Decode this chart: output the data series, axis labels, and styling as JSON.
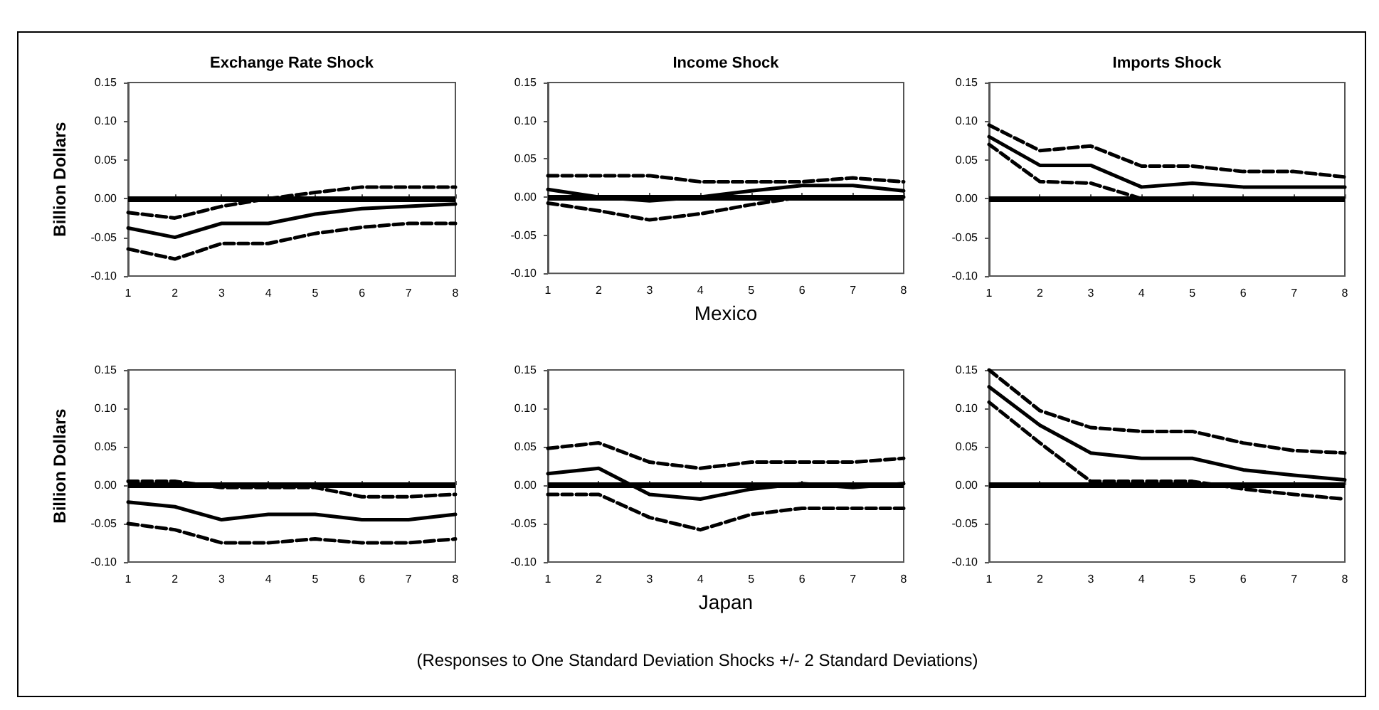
{
  "chart_data": [
    {
      "type": "line",
      "title": "Exchange Rate Shock",
      "ylabel": "Billion Dollars",
      "x": [
        1,
        2,
        3,
        4,
        5,
        6,
        7,
        8
      ],
      "xlim": [
        1,
        8
      ],
      "xticks": [
        1,
        2,
        3,
        4,
        5,
        6,
        7,
        8
      ],
      "ylim": [
        -0.1,
        0.15
      ],
      "yticks": [
        {
          "value": -0.1,
          "label": "-0.10"
        },
        {
          "value": -0.05,
          "label": "-0.05"
        },
        {
          "value": 0,
          "label": "0.00"
        },
        {
          "value": 0.05,
          "label": "0.05"
        },
        {
          "value": 0.1,
          "label": "0.10"
        },
        {
          "value": 0.15,
          "label": "0.15"
        }
      ],
      "marker": "none",
      "grid": false,
      "series": [
        {
          "color": "#000000",
          "line_style": "solid",
          "values": [
            -0.038,
            -0.05,
            -0.032,
            -0.032,
            -0.02,
            -0.013,
            -0.01,
            -0.007
          ]
        },
        {
          "color": "#000000",
          "line_style": "dashed",
          "values": [
            -0.018,
            -0.025,
            -0.01,
            0.0,
            0.008,
            0.015,
            0.015,
            0.015
          ]
        },
        {
          "color": "#000000",
          "line_style": "dashed",
          "values": [
            -0.065,
            -0.078,
            -0.058,
            -0.058,
            -0.045,
            -0.037,
            -0.032,
            -0.032
          ]
        }
      ],
      "ref_lines": [
        {
          "axis": "y",
          "value": 0,
          "color": "#000000"
        }
      ]
    },
    {
      "type": "line",
      "title": "Income Shock",
      "xlabel": "Mexico",
      "x": [
        1,
        2,
        3,
        4,
        5,
        6,
        7,
        8
      ],
      "xlim": [
        1,
        8
      ],
      "xticks": [
        1,
        2,
        3,
        4,
        5,
        6,
        7,
        8
      ],
      "ylim": [
        -0.1,
        0.15
      ],
      "yticks": [
        {
          "value": -0.1,
          "label": "-0.10"
        },
        {
          "value": -0.05,
          "label": "-0.05"
        },
        {
          "value": 0,
          "label": "0.00"
        },
        {
          "value": 0.05,
          "label": "0.05"
        },
        {
          "value": 0.1,
          "label": "0.10"
        },
        {
          "value": 0.15,
          "label": "0.15"
        }
      ],
      "marker": "none",
      "grid": false,
      "series": [
        {
          "color": "#000000",
          "line_style": "solid",
          "values": [
            0.01,
            0.0,
            -0.005,
            0.0,
            0.008,
            0.015,
            0.015,
            0.008
          ]
        },
        {
          "color": "#000000",
          "line_style": "dashed",
          "values": [
            0.028,
            0.028,
            0.028,
            0.02,
            0.02,
            0.02,
            0.025,
            0.02
          ]
        },
        {
          "color": "#000000",
          "line_style": "dashed",
          "values": [
            -0.008,
            -0.018,
            -0.03,
            -0.022,
            -0.01,
            0.0,
            0.0,
            0.0
          ]
        }
      ],
      "ref_lines": [
        {
          "axis": "y",
          "value": 0,
          "color": "#000000"
        }
      ]
    },
    {
      "type": "line",
      "title": "Imports Shock",
      "x": [
        1,
        2,
        3,
        4,
        5,
        6,
        7,
        8
      ],
      "xlim": [
        1,
        8
      ],
      "xticks": [
        1,
        2,
        3,
        4,
        5,
        6,
        7,
        8
      ],
      "ylim": [
        -0.1,
        0.15
      ],
      "yticks": [
        {
          "value": -0.1,
          "label": "-0.10"
        },
        {
          "value": -0.05,
          "label": "-0.05"
        },
        {
          "value": 0,
          "label": "0.00"
        },
        {
          "value": 0.05,
          "label": "0.05"
        },
        {
          "value": 0.1,
          "label": "0.10"
        },
        {
          "value": 0.15,
          "label": "0.15"
        }
      ],
      "marker": "none",
      "grid": false,
      "series": [
        {
          "color": "#000000",
          "line_style": "solid",
          "values": [
            0.08,
            0.043,
            0.043,
            0.015,
            0.02,
            0.015,
            0.015,
            0.015
          ]
        },
        {
          "color": "#000000",
          "line_style": "dashed",
          "values": [
            0.095,
            0.062,
            0.068,
            0.042,
            0.042,
            0.035,
            0.035,
            0.028
          ]
        },
        {
          "color": "#000000",
          "line_style": "dashed",
          "values": [
            0.07,
            0.022,
            0.02,
            0.0,
            null,
            null,
            null,
            null
          ]
        }
      ],
      "ref_lines": [
        {
          "axis": "y",
          "value": 0,
          "color": "#000000"
        }
      ]
    },
    {
      "type": "line",
      "ylabel": "Billion Dollars",
      "x": [
        1,
        2,
        3,
        4,
        5,
        6,
        7,
        8
      ],
      "xlim": [
        1,
        8
      ],
      "xticks": [
        1,
        2,
        3,
        4,
        5,
        6,
        7,
        8
      ],
      "ylim": [
        -0.1,
        0.15
      ],
      "yticks": [
        {
          "value": -0.1,
          "label": "-0.10"
        },
        {
          "value": -0.05,
          "label": "-0.05"
        },
        {
          "value": 0,
          "label": "0.00"
        },
        {
          "value": 0.05,
          "label": "0.05"
        },
        {
          "value": 0.1,
          "label": "0.10"
        },
        {
          "value": 0.15,
          "label": "0.15"
        }
      ],
      "marker": "none",
      "grid": false,
      "series": [
        {
          "color": "#000000",
          "line_style": "solid",
          "values": [
            -0.022,
            -0.028,
            -0.045,
            -0.038,
            -0.038,
            -0.045,
            -0.045,
            -0.038
          ]
        },
        {
          "color": "#000000",
          "line_style": "dashed",
          "values": [
            0.005,
            0.005,
            -0.003,
            -0.003,
            -0.003,
            -0.015,
            -0.015,
            -0.012
          ]
        },
        {
          "color": "#000000",
          "line_style": "dashed",
          "values": [
            -0.05,
            -0.058,
            -0.075,
            -0.075,
            -0.07,
            -0.075,
            -0.075,
            -0.07
          ]
        }
      ],
      "ref_lines": [
        {
          "axis": "y",
          "value": 0,
          "color": "#000000"
        }
      ]
    },
    {
      "type": "line",
      "xlabel": "Japan",
      "x": [
        1,
        2,
        3,
        4,
        5,
        6,
        7,
        8
      ],
      "xlim": [
        1,
        8
      ],
      "xticks": [
        1,
        2,
        3,
        4,
        5,
        6,
        7,
        8
      ],
      "ylim": [
        -0.1,
        0.15
      ],
      "yticks": [
        {
          "value": -0.1,
          "label": "-0.10"
        },
        {
          "value": -0.05,
          "label": "-0.05"
        },
        {
          "value": 0,
          "label": "0.00"
        },
        {
          "value": 0.05,
          "label": "0.05"
        },
        {
          "value": 0.1,
          "label": "0.10"
        },
        {
          "value": 0.15,
          "label": "0.15"
        }
      ],
      "marker": "none",
      "grid": false,
      "series": [
        {
          "color": "#000000",
          "line_style": "solid",
          "values": [
            0.015,
            0.022,
            -0.012,
            -0.018,
            -0.005,
            0.002,
            -0.003,
            0.002
          ]
        },
        {
          "color": "#000000",
          "line_style": "dashed",
          "values": [
            0.048,
            0.055,
            0.03,
            0.022,
            0.03,
            0.03,
            0.03,
            0.035
          ]
        },
        {
          "color": "#000000",
          "line_style": "dashed",
          "values": [
            -0.012,
            -0.012,
            -0.042,
            -0.058,
            -0.038,
            -0.03,
            -0.03,
            -0.03
          ]
        }
      ],
      "ref_lines": [
        {
          "axis": "y",
          "value": 0,
          "color": "#000000"
        }
      ],
      "annotations": [
        "(Responses to One Standard Deviation Shocks +/- 2 Standard Deviations)"
      ]
    },
    {
      "type": "line",
      "x": [
        1,
        2,
        3,
        4,
        5,
        6,
        7,
        8
      ],
      "xlim": [
        1,
        8
      ],
      "xticks": [
        1,
        2,
        3,
        4,
        5,
        6,
        7,
        8
      ],
      "ylim": [
        -0.1,
        0.15
      ],
      "yticks": [
        {
          "value": -0.1,
          "label": "-0.10"
        },
        {
          "value": -0.05,
          "label": "-0.05"
        },
        {
          "value": 0,
          "label": "0.00"
        },
        {
          "value": 0.05,
          "label": "0.05"
        },
        {
          "value": 0.1,
          "label": "0.10"
        },
        {
          "value": 0.15,
          "label": "0.15"
        }
      ],
      "marker": "none",
      "grid": false,
      "series": [
        {
          "color": "#000000",
          "line_style": "solid",
          "values": [
            0.128,
            0.078,
            0.042,
            0.035,
            0.035,
            0.02,
            0.013,
            0.007
          ]
        },
        {
          "color": "#000000",
          "line_style": "dashed",
          "values": [
            0.15,
            0.097,
            0.075,
            0.07,
            0.07,
            0.055,
            0.045,
            0.042
          ]
        },
        {
          "color": "#000000",
          "line_style": "dashed",
          "values": [
            0.108,
            0.055,
            0.005,
            0.005,
            0.005,
            -0.005,
            -0.012,
            -0.018
          ]
        }
      ],
      "ref_lines": [
        {
          "axis": "y",
          "value": 0,
          "color": "#000000"
        }
      ]
    }
  ]
}
